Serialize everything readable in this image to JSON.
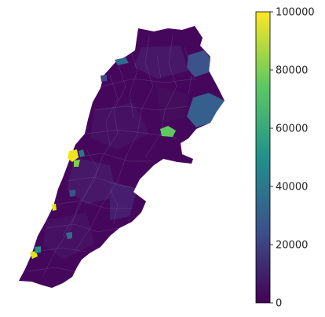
{
  "chart_data": {
    "type": "choropleth",
    "title": "",
    "colormap": "viridis",
    "colormap_colors": [
      "#440154",
      "#3b528b",
      "#21918c",
      "#5ec962",
      "#fde725"
    ],
    "colorbar": {
      "range": [
        0,
        100000
      ],
      "ticks": [
        0,
        20000,
        40000,
        60000,
        80000,
        100000
      ],
      "tick_labels": [
        "0",
        "20000",
        "40000",
        "60000",
        "80000",
        "100000"
      ]
    },
    "region_outline_color": "#8a6aa0",
    "highlighted_regions": [
      {
        "value": 25000,
        "location": "north-east"
      },
      {
        "value": 23000,
        "location": "east"
      },
      {
        "value": 62000,
        "location": "central-east"
      },
      {
        "value": 95000,
        "location": "west-coast-center"
      },
      {
        "value": 68000,
        "location": "west-coast-center"
      },
      {
        "value": 30000,
        "location": "west-coast-center"
      },
      {
        "value": 90000,
        "location": "south-west-coast"
      },
      {
        "value": 35000,
        "location": "south-west"
      },
      {
        "value": 88000,
        "location": "south-west"
      },
      {
        "value": 42000,
        "location": "south-west"
      },
      {
        "value": 30000,
        "location": "north-coast"
      }
    ]
  }
}
